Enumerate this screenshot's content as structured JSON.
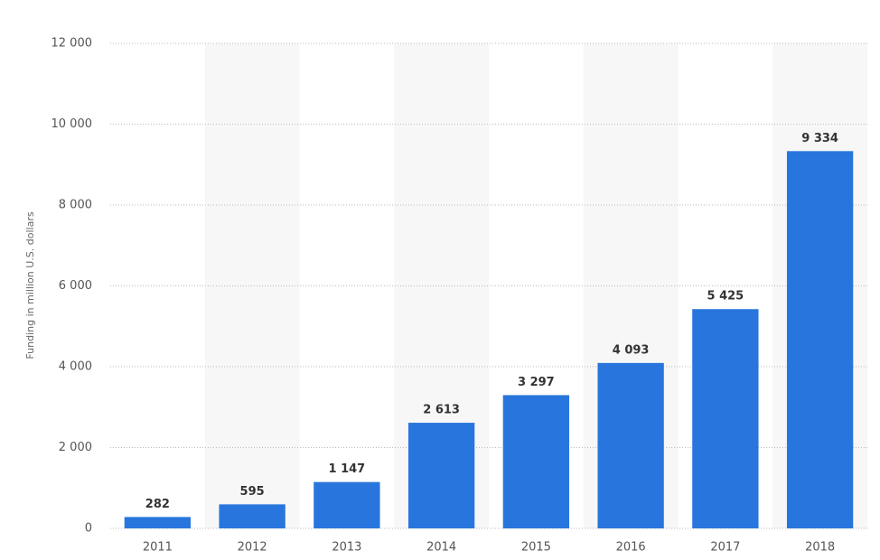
{
  "chart_data": {
    "type": "bar",
    "y_label": "Funding in million U.S. dollars",
    "categories": [
      "2011",
      "2012",
      "2013",
      "2014",
      "2015",
      "2016",
      "2017",
      "2018"
    ],
    "values": [
      282,
      595,
      1147,
      2613,
      3297,
      4093,
      5425,
      9334
    ],
    "value_labels": [
      "282",
      "595",
      "1 147",
      "2 613",
      "3 297",
      "4 093",
      "5 425",
      "9 334"
    ],
    "color": "#2876dd",
    "ylim": [
      0,
      12000
    ],
    "yticks": [
      0,
      {
        "value": 2000,
        "label": "2 000"
      },
      {
        "value": 4000,
        "label": "4 000"
      },
      {
        "value": 6000,
        "label": "6 000"
      },
      {
        "value": 8000,
        "label": "8 000"
      },
      {
        "value": 10000,
        "label": "10 000"
      },
      {
        "value": 12000,
        "label": "12 000"
      }
    ],
    "grid": true
  }
}
